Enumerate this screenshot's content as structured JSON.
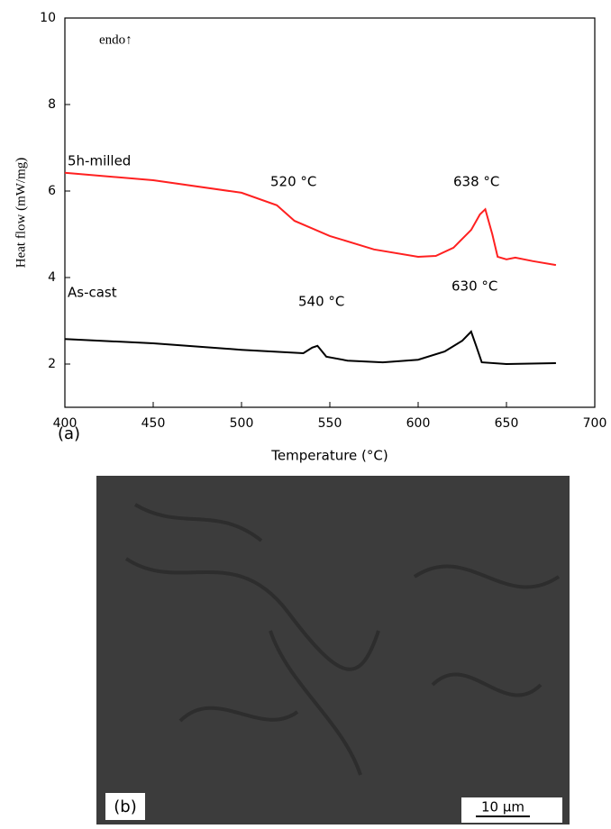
{
  "chart_data": {
    "type": "line",
    "xlabel": "Temperature (°C)",
    "ylabel": "Heat flow (mW/mg)",
    "xlim": [
      400,
      700
    ],
    "xticks": [
      400,
      450,
      500,
      550,
      600,
      650,
      700
    ],
    "ylim": [
      1,
      10
    ],
    "yticks": [
      2,
      4,
      6,
      8,
      10
    ],
    "panel_label": "(a)",
    "annotations": [
      "endo↑",
      "520 °C",
      "638 °C",
      "540 °C",
      "630 °C"
    ],
    "series": [
      {
        "name": "5h-milled",
        "color": "#ff2020",
        "x": [
          400,
          450,
          500,
          520,
          530,
          550,
          575,
          600,
          610,
          620,
          630,
          635,
          638,
          642,
          645,
          650,
          655,
          665,
          678
        ],
        "values": [
          6.42,
          6.25,
          5.96,
          5.67,
          5.31,
          4.96,
          4.65,
          4.48,
          4.5,
          4.69,
          5.1,
          5.46,
          5.58,
          5.0,
          4.48,
          4.42,
          4.46,
          4.38,
          4.29
        ]
      },
      {
        "name": "As-cast",
        "color": "#000000",
        "x": [
          400,
          450,
          500,
          535,
          540,
          543,
          548,
          560,
          580,
          600,
          615,
          625,
          630,
          633,
          636,
          650,
          678
        ],
        "values": [
          2.58,
          2.48,
          2.33,
          2.25,
          2.38,
          2.42,
          2.17,
          2.08,
          2.04,
          2.1,
          2.29,
          2.54,
          2.75,
          2.4,
          2.04,
          2.0,
          2.02
        ]
      }
    ]
  },
  "image_panel": {
    "label": "(b)",
    "scale_bar": "10 μm"
  }
}
